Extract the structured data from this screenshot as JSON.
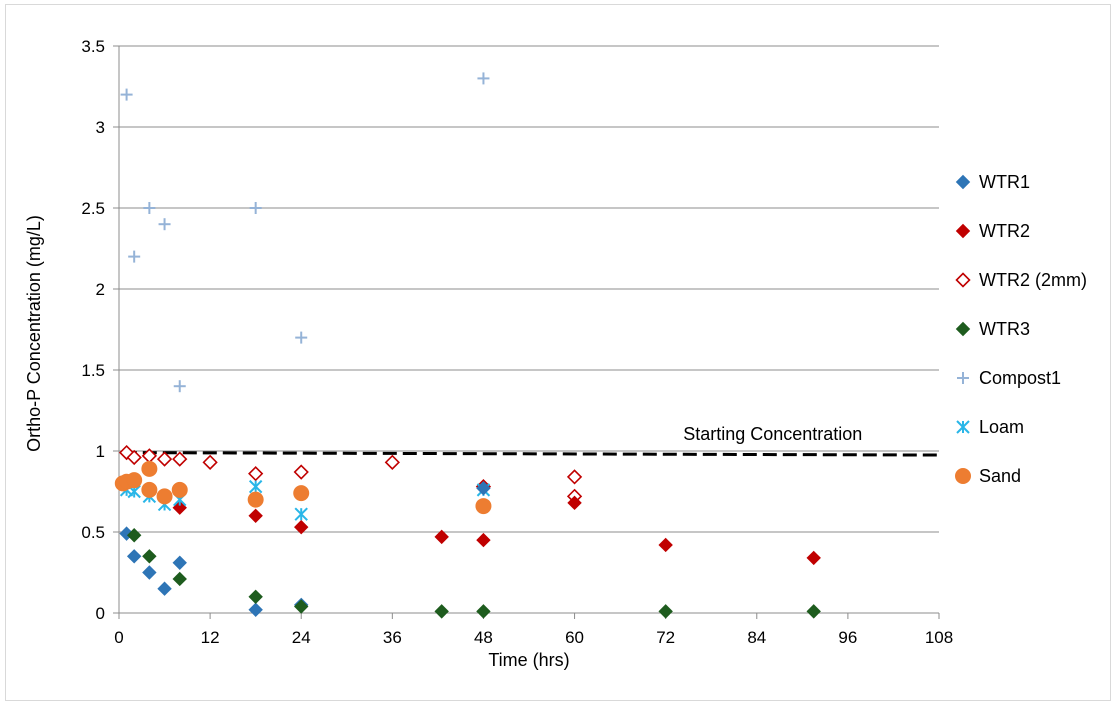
{
  "chart_data": {
    "type": "scatter",
    "title": "",
    "xlabel": "Time (hrs)",
    "ylabel": "Ortho-P Concentration (mg/L)",
    "xlim": [
      0,
      108
    ],
    "ylim": [
      0,
      3.5
    ],
    "xticks": [
      0,
      12,
      24,
      36,
      48,
      60,
      72,
      84,
      96,
      108
    ],
    "yticks": [
      0,
      0.5,
      1,
      1.5,
      2,
      2.5,
      3,
      3.5
    ],
    "ytick_labels": [
      "0",
      "0.5",
      "1",
      "1.5",
      "2",
      "2.5",
      "3",
      "3.5"
    ],
    "grid": "horizontal",
    "legend_position": "right",
    "annotation": {
      "text": "Starting Concentration",
      "x": 90,
      "y": 1.03
    },
    "reference_line": {
      "y_start": 0.99,
      "y_end": 0.975,
      "x_start": 0.5,
      "x_end": 108,
      "style": "dashed",
      "color": "#000000"
    },
    "series": [
      {
        "name": "WTR1",
        "marker": "diamond-filled",
        "color": "#2e75b6",
        "points": [
          [
            1,
            0.49
          ],
          [
            2,
            0.35
          ],
          [
            4,
            0.25
          ],
          [
            6,
            0.15
          ],
          [
            8,
            0.31
          ],
          [
            18,
            0.02
          ],
          [
            24,
            0.05
          ],
          [
            48,
            0.77
          ]
        ]
      },
      {
        "name": "WTR2",
        "marker": "diamond-filled",
        "color": "#c00000",
        "points": [
          [
            8,
            0.65
          ],
          [
            18,
            0.6
          ],
          [
            24,
            0.53
          ],
          [
            42.5,
            0.47
          ],
          [
            48,
            0.45
          ],
          [
            60,
            0.68
          ],
          [
            72,
            0.42
          ],
          [
            91.5,
            0.34
          ]
        ]
      },
      {
        "name": "WTR2 (2mm)",
        "marker": "diamond-open",
        "color": "#c00000",
        "points": [
          [
            1,
            0.99
          ],
          [
            2,
            0.96
          ],
          [
            4,
            0.97
          ],
          [
            6,
            0.95
          ],
          [
            8,
            0.95
          ],
          [
            12,
            0.93
          ],
          [
            18,
            0.86
          ],
          [
            24,
            0.87
          ],
          [
            36,
            0.93
          ],
          [
            48,
            0.78
          ],
          [
            60,
            0.84
          ],
          [
            60,
            0.72
          ]
        ]
      },
      {
        "name": "WTR3",
        "marker": "diamond-filled",
        "color": "#1e5c1e",
        "points": [
          [
            2,
            0.48
          ],
          [
            4,
            0.35
          ],
          [
            8,
            0.21
          ],
          [
            18,
            0.1
          ],
          [
            24,
            0.04
          ],
          [
            42.5,
            0.01
          ],
          [
            48,
            0.01
          ],
          [
            72,
            0.01
          ],
          [
            91.5,
            0.01
          ]
        ]
      },
      {
        "name": "Compost1",
        "marker": "plus",
        "color": "#95b3d7",
        "points": [
          [
            1,
            3.2
          ],
          [
            2,
            2.2
          ],
          [
            4,
            2.5
          ],
          [
            6,
            2.4
          ],
          [
            8,
            1.4
          ],
          [
            18,
            2.5
          ],
          [
            24,
            1.7
          ],
          [
            48,
            3.3
          ]
        ]
      },
      {
        "name": "Loam",
        "marker": "asterisk",
        "color": "#29b6e8",
        "points": [
          [
            1,
            0.76
          ],
          [
            2,
            0.75
          ],
          [
            4,
            0.72
          ],
          [
            6,
            0.67
          ],
          [
            8,
            0.7
          ],
          [
            18,
            0.78
          ],
          [
            24,
            0.61
          ],
          [
            48,
            0.76
          ]
        ]
      },
      {
        "name": "Sand",
        "marker": "circle",
        "color": "#ed7d31",
        "points": [
          [
            0.5,
            0.8
          ],
          [
            1,
            0.81
          ],
          [
            2,
            0.82
          ],
          [
            4,
            0.76
          ],
          [
            4,
            0.89
          ],
          [
            6,
            0.72
          ],
          [
            8,
            0.76
          ],
          [
            18,
            0.7
          ],
          [
            24,
            0.74
          ],
          [
            48,
            0.66
          ]
        ]
      }
    ]
  }
}
